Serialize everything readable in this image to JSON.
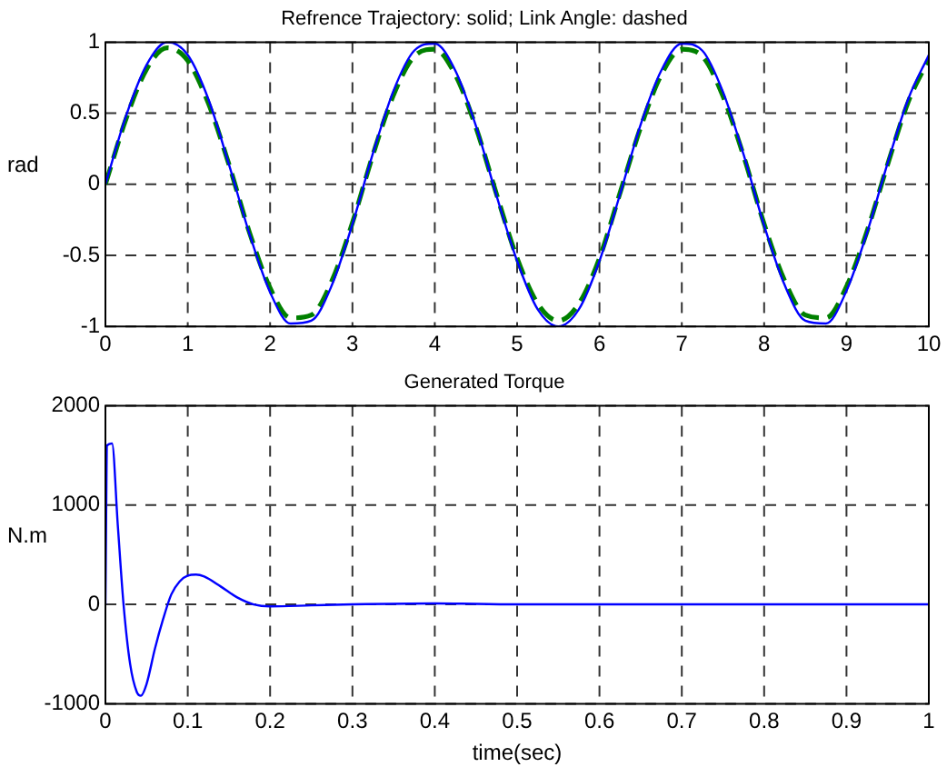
{
  "chart_data": [
    {
      "type": "line",
      "title": "Refrence Trajectory: solid; Link Angle: dashed",
      "ylabel": "rad",
      "x": [
        0,
        0.25,
        0.5,
        0.75,
        1,
        1.25,
        1.5,
        1.75,
        2,
        2.25,
        2.5,
        2.75,
        3,
        3.25,
        3.5,
        3.75,
        4,
        4.25,
        4.5,
        4.75,
        5,
        5.25,
        5.5,
        5.75,
        6,
        6.25,
        6.5,
        6.75,
        7,
        7.25,
        7.5,
        7.75,
        8,
        8.25,
        8.5,
        8.75,
        9,
        9.25,
        9.5,
        9.75,
        10
      ],
      "xlim": [
        0,
        10
      ],
      "xticks": [
        0,
        1,
        2,
        3,
        4,
        5,
        6,
        7,
        8,
        9,
        10
      ],
      "ylim": [
        -1,
        1
      ],
      "yticks": [
        -1,
        -0.5,
        0,
        0.5,
        1
      ],
      "grid": true,
      "legend": false,
      "marker": "none",
      "series": [
        {
          "color": "#0000ff",
          "line_style": "solid",
          "values": [
            0,
            0.48,
            0.84,
            1,
            0.91,
            0.6,
            0.14,
            -0.35,
            -0.76,
            -0.98,
            -0.96,
            -0.71,
            -0.28,
            0.22,
            0.66,
            0.94,
            0.99,
            0.8,
            0.41,
            -0.08,
            -0.54,
            -0.88,
            -1,
            -0.88,
            -0.54,
            -0.07,
            0.42,
            0.8,
            0.99,
            0.94,
            0.65,
            0.21,
            -0.29,
            -0.71,
            -0.96,
            -0.98,
            -0.75,
            -0.34,
            0.15,
            0.6,
            0.91
          ]
        },
        {
          "color": "#008000",
          "line_style": "dashed",
          "values": [
            0,
            0.46,
            0.81,
            0.96,
            0.87,
            0.57,
            0.14,
            -0.34,
            -0.73,
            -0.94,
            -0.92,
            -0.68,
            -0.27,
            0.21,
            0.63,
            0.9,
            0.95,
            0.77,
            0.4,
            -0.07,
            -0.52,
            -0.84,
            -0.96,
            -0.84,
            -0.52,
            -0.06,
            0.4,
            0.77,
            0.95,
            0.9,
            0.62,
            0.2,
            -0.28,
            -0.68,
            -0.92,
            -0.94,
            -0.72,
            -0.33,
            0.14,
            0.58,
            0.88
          ]
        }
      ]
    },
    {
      "type": "line",
      "title": "Generated Torque",
      "xlabel": "time(sec)",
      "ylabel": "N.m",
      "x": [
        0,
        0.002,
        0.008,
        0.015,
        0.022,
        0.03,
        0.038,
        0.043,
        0.05,
        0.06,
        0.07,
        0.08,
        0.09,
        0.1,
        0.11,
        0.12,
        0.14,
        0.16,
        0.18,
        0.2,
        0.25,
        0.3,
        0.4,
        0.5,
        0.6,
        0.7,
        0.8,
        0.9,
        1
      ],
      "xlim": [
        0,
        1
      ],
      "xticks": [
        0,
        0.1,
        0.2,
        0.3,
        0.4,
        0.5,
        0.6,
        0.7,
        0.8,
        0.9,
        1
      ],
      "ylim": [
        -1000,
        2000
      ],
      "yticks": [
        -1000,
        0,
        1000,
        2000
      ],
      "grid": true,
      "legend": false,
      "marker": "none",
      "series": [
        {
          "color": "#0000ff",
          "line_style": "solid",
          "values": [
            0,
            1600,
            1620,
            800,
            0,
            -600,
            -880,
            -920,
            -800,
            -450,
            -150,
            100,
            230,
            290,
            300,
            280,
            180,
            70,
            0,
            -20,
            -10,
            0,
            10,
            0,
            0,
            0,
            0,
            0,
            0
          ]
        }
      ]
    }
  ]
}
